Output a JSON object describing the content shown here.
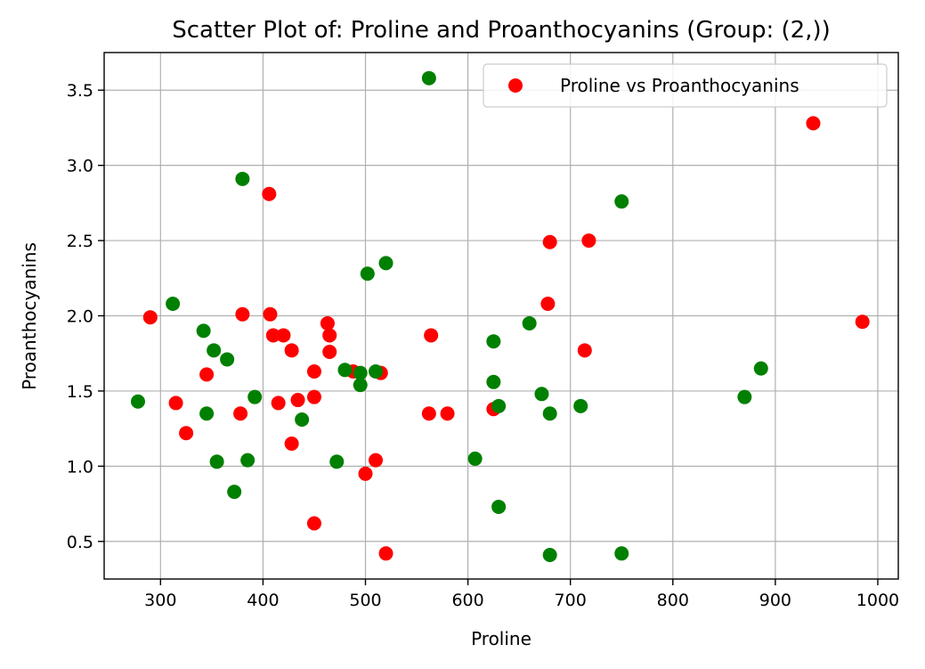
{
  "chart_data": {
    "type": "scatter",
    "title": "Scatter Plot of: Proline and Proanthocyanins (Group: (2,))",
    "xlabel": "Proline",
    "ylabel": "Proanthocyanins",
    "xlim": [
      245,
      1020
    ],
    "ylim": [
      0.25,
      3.75
    ],
    "xticks": [
      300,
      400,
      500,
      600,
      700,
      800,
      900,
      1000
    ],
    "yticks": [
      0.5,
      1.0,
      1.5,
      2.0,
      2.5,
      3.0,
      3.5
    ],
    "grid": true,
    "legend": {
      "placement": "top-right",
      "entries": [
        {
          "label": "Proline vs Proanthocyanins",
          "color": "#ff0000"
        }
      ]
    },
    "series": [
      {
        "name": "Proline vs Proanthocyanins",
        "color": "#ff0000",
        "points": [
          [
            290,
            1.99
          ],
          [
            315,
            1.42
          ],
          [
            325,
            1.22
          ],
          [
            345,
            1.61
          ],
          [
            378,
            1.35
          ],
          [
            380,
            2.01
          ],
          [
            406,
            2.81
          ],
          [
            407,
            2.01
          ],
          [
            410,
            1.87
          ],
          [
            415,
            1.42
          ],
          [
            420,
            1.87
          ],
          [
            428,
            1.77
          ],
          [
            428,
            1.15
          ],
          [
            434,
            1.44
          ],
          [
            450,
            1.63
          ],
          [
            450,
            1.46
          ],
          [
            450,
            0.62
          ],
          [
            463,
            1.95
          ],
          [
            465,
            1.87
          ],
          [
            465,
            1.76
          ],
          [
            488,
            1.63
          ],
          [
            500,
            0.95
          ],
          [
            510,
            1.04
          ],
          [
            515,
            1.62
          ],
          [
            520,
            0.42
          ],
          [
            562,
            1.35
          ],
          [
            564,
            1.87
          ],
          [
            580,
            1.35
          ],
          [
            625,
            1.38
          ],
          [
            678,
            2.08
          ],
          [
            680,
            2.49
          ],
          [
            714,
            1.77
          ],
          [
            718,
            2.5
          ],
          [
            937,
            3.28
          ],
          [
            985,
            1.96
          ]
        ]
      },
      {
        "color": "#008000",
        "points": [
          [
            278,
            1.43
          ],
          [
            312,
            2.08
          ],
          [
            342,
            1.9
          ],
          [
            345,
            1.35
          ],
          [
            352,
            1.77
          ],
          [
            355,
            1.03
          ],
          [
            365,
            1.71
          ],
          [
            372,
            0.83
          ],
          [
            380,
            2.91
          ],
          [
            385,
            1.04
          ],
          [
            392,
            1.46
          ],
          [
            438,
            1.31
          ],
          [
            472,
            1.03
          ],
          [
            480,
            1.64
          ],
          [
            495,
            1.54
          ],
          [
            495,
            1.62
          ],
          [
            502,
            2.28
          ],
          [
            510,
            1.63
          ],
          [
            520,
            2.35
          ],
          [
            562,
            3.58
          ],
          [
            607,
            1.05
          ],
          [
            625,
            1.83
          ],
          [
            625,
            1.56
          ],
          [
            630,
            1.4
          ],
          [
            630,
            0.73
          ],
          [
            660,
            1.95
          ],
          [
            672,
            1.48
          ],
          [
            680,
            1.35
          ],
          [
            680,
            0.41
          ],
          [
            710,
            1.4
          ],
          [
            750,
            2.76
          ],
          [
            750,
            0.42
          ],
          [
            870,
            1.46
          ],
          [
            886,
            1.65
          ]
        ]
      }
    ]
  }
}
